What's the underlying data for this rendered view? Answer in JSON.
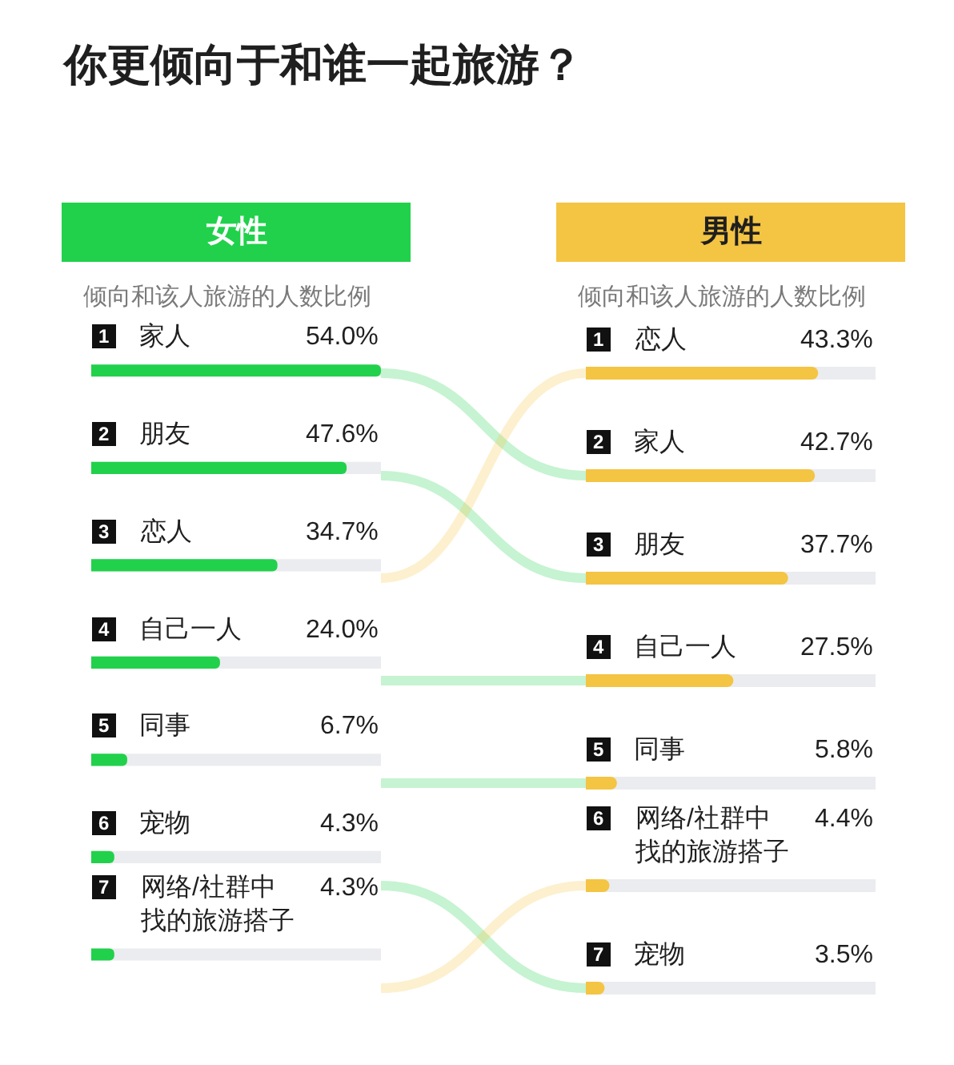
{
  "chart_data": [
    {
      "type": "bar",
      "orientation": "horizontal",
      "title": "你更倾向于和谁一起旅游？",
      "xlabel": "倾向和该人旅游的人数比例",
      "categories": [
        "家人",
        "朋友",
        "恋人",
        "自己一人",
        "同事",
        "宠物",
        "网络/社群中找的旅游搭子"
      ],
      "series": [
        {
          "name": "女性",
          "color": "#21d14b",
          "values": [
            54.0,
            47.6,
            34.7,
            24.0,
            6.7,
            4.3,
            4.3
          ],
          "value_labels": [
            "54.0%",
            "47.6%",
            "34.7%",
            "24.0%",
            "6.7%",
            "4.3%",
            "4.3%"
          ]
        }
      ],
      "xlim": [
        0,
        54
      ],
      "tick_labels": "y",
      "grid": false,
      "legend": false,
      "annotations": [
        "1",
        "2",
        "3",
        "4",
        "5",
        "6",
        "7"
      ]
    },
    {
      "type": "bar",
      "orientation": "horizontal",
      "xlabel": "倾向和该人旅游的人数比例",
      "categories": [
        "恋人",
        "家人",
        "朋友",
        "自己一人",
        "同事",
        "网络/社群中找的旅游搭子",
        "宠物"
      ],
      "series": [
        {
          "name": "男性",
          "color": "#f4c443",
          "values": [
            43.3,
            42.7,
            37.7,
            27.5,
            5.8,
            4.4,
            3.5
          ],
          "value_labels": [
            "43.3%",
            "42.7%",
            "37.7%",
            "27.5%",
            "5.8%",
            "4.4%",
            "3.5%"
          ]
        }
      ],
      "xlim": [
        0,
        54
      ],
      "tick_labels": "y",
      "grid": false,
      "legend": false,
      "annotations": [
        "1",
        "2",
        "3",
        "4",
        "5",
        "6",
        "7"
      ]
    }
  ]
}
